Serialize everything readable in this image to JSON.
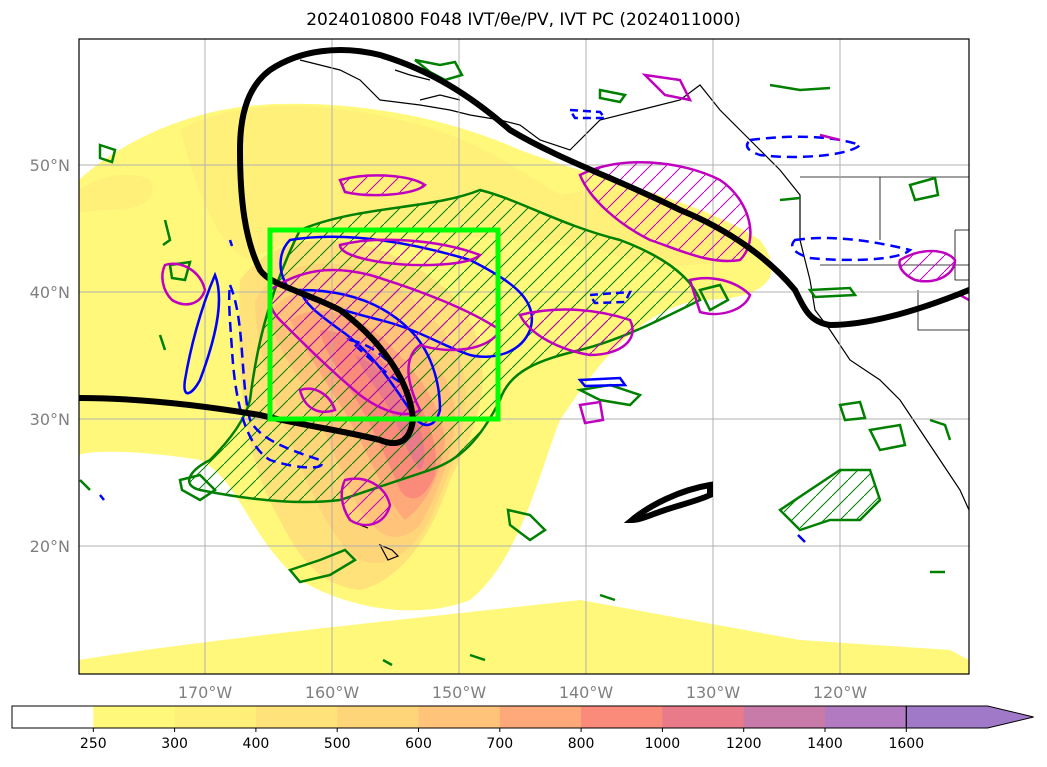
{
  "title": "2024010800 F048 IVT/θe/PV, IVT PC (2024011000)",
  "map": {
    "lat_ticks": [
      "50°N",
      "40°N",
      "30°N",
      "20°N"
    ],
    "lon_ticks": [
      "170°W",
      "160°W",
      "150°W",
      "140°W",
      "130°W",
      "120°W"
    ],
    "grid": true,
    "highlight_box": {
      "lon_range": [
        "165°W",
        "147°W"
      ],
      "lat_range": [
        "30°N",
        "45°N"
      ],
      "color": "#00ff00"
    }
  },
  "colorbar": {
    "levels": [
      "250",
      "300",
      "400",
      "500",
      "600",
      "700",
      "800",
      "1000",
      "1200",
      "1400",
      "1600"
    ],
    "colors": [
      "#ffffff",
      "#fff87a",
      "#fff07a",
      "#ffe27a",
      "#ffd57a",
      "#ffc47a",
      "#ffa87a",
      "#fa8a7a",
      "#e87a8a",
      "#c87aa8",
      "#b27ac0",
      "#a07ac8"
    ],
    "extend": "max"
  },
  "colors": {
    "ivt_pc_contour": "#000000",
    "theta_e_contour": "#008000",
    "pv_positive_contour": "#bf00bf",
    "pv_negative_contour": "#0000ff",
    "coastline": "#000000"
  }
}
